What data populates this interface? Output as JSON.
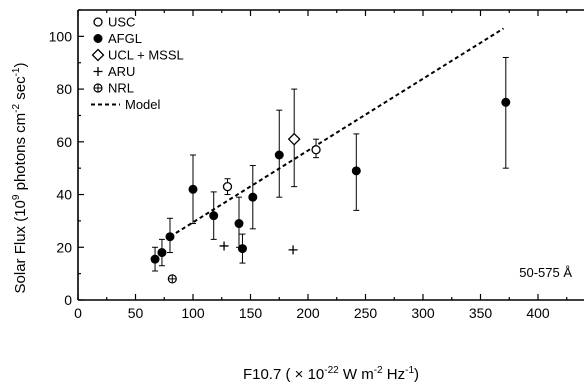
{
  "chart_data": {
    "type": "scatter",
    "xlabel_main": "F10.7 ( × 10",
    "xlabel_exp1": "-22",
    "xlabel_mid1": " W m",
    "xlabel_exp2": "-2",
    "xlabel_mid2": " Hz",
    "xlabel_exp3": "-1",
    "xlabel_end": ")",
    "ylabel_main": "Solar Flux (10",
    "ylabel_exp1": "9",
    "ylabel_mid1": " photons cm",
    "ylabel_exp2": "-2",
    "ylabel_mid2": " sec",
    "ylabel_exp3": "-1",
    "ylabel_end": ")",
    "xlim": [
      0,
      440
    ],
    "ylim": [
      0,
      110
    ],
    "xticks": [
      0,
      50,
      100,
      150,
      200,
      250,
      300,
      350,
      400
    ],
    "yticks": [
      0,
      20,
      40,
      60,
      80,
      100
    ],
    "annotation": "50-575 Å",
    "legend": [
      "USC",
      "AFGL",
      "UCL + MSSL",
      "ARU",
      "NRL",
      "Model"
    ],
    "series": [
      {
        "name": "USC",
        "marker": "open-circle",
        "points": [
          {
            "x": 130,
            "y": 43,
            "yerr_lo": 40,
            "yerr_hi": 46
          },
          {
            "x": 207,
            "y": 57,
            "yerr_lo": 54,
            "yerr_hi": 61
          }
        ]
      },
      {
        "name": "AFGL",
        "marker": "filled-circle",
        "points": [
          {
            "x": 67,
            "y": 15.5,
            "yerr_lo": 11,
            "yerr_hi": 20
          },
          {
            "x": 73,
            "y": 18,
            "yerr_lo": 13,
            "yerr_hi": 23
          },
          {
            "x": 80,
            "y": 24,
            "yerr_lo": 18,
            "yerr_hi": 31
          },
          {
            "x": 100,
            "y": 42,
            "yerr_lo": 29,
            "yerr_hi": 55
          },
          {
            "x": 118,
            "y": 32,
            "yerr_lo": 23,
            "yerr_hi": 41
          },
          {
            "x": 140,
            "y": 29,
            "yerr_lo": 20,
            "yerr_hi": 39
          },
          {
            "x": 143,
            "y": 19.5,
            "yerr_lo": 14,
            "yerr_hi": 25
          },
          {
            "x": 152,
            "y": 39,
            "yerr_lo": 27,
            "yerr_hi": 51
          },
          {
            "x": 175,
            "y": 55,
            "yerr_lo": 39,
            "yerr_hi": 72
          },
          {
            "x": 242,
            "y": 49,
            "yerr_lo": 34,
            "yerr_hi": 63
          },
          {
            "x": 372,
            "y": 75,
            "yerr_lo": 50,
            "yerr_hi": 92
          }
        ]
      },
      {
        "name": "UCL + MSSL",
        "marker": "open-diamond",
        "points": [
          {
            "x": 188,
            "y": 61,
            "yerr_lo": 43,
            "yerr_hi": 80
          }
        ]
      },
      {
        "name": "ARU",
        "marker": "plus",
        "points": [
          {
            "x": 127,
            "y": 20.5
          },
          {
            "x": 187,
            "y": 19
          }
        ]
      },
      {
        "name": "NRL",
        "marker": "circle-plus",
        "points": [
          {
            "x": 82,
            "y": 8
          }
        ]
      },
      {
        "name": "Model",
        "marker": "dashed-line",
        "line": [
          {
            "x": 80,
            "y": 24
          },
          {
            "x": 370,
            "y": 103
          }
        ]
      }
    ]
  }
}
